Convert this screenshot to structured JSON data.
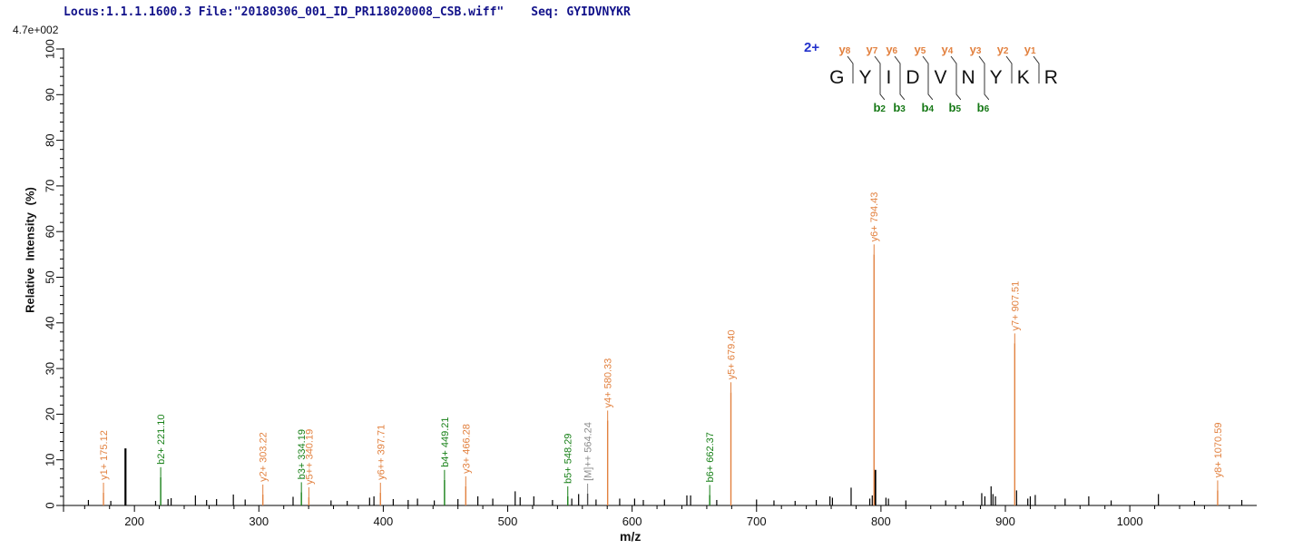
{
  "header": {
    "locus_file": "Locus:1.1.1.1600.3 File:\"20180306_001_ID_PR118020008_CSB.wiff\"",
    "seq_label": "Seq: GYIDVNYKR",
    "intensity_scale": "4.7e+002"
  },
  "peptide": {
    "charge": "2+",
    "residues": [
      "G",
      "Y",
      "I",
      "D",
      "V",
      "N",
      "Y",
      "K",
      "R"
    ],
    "gaps": [
      {
        "y": "y8",
        "b": null
      },
      {
        "y": "y7",
        "b": "b2"
      },
      {
        "y": "y6",
        "b": "b3"
      },
      {
        "y": "y5",
        "b": "b4"
      },
      {
        "y": "y4",
        "b": "b5"
      },
      {
        "y": "y3",
        "b": "b6"
      },
      {
        "y": "y2",
        "b": null
      },
      {
        "y": "y1",
        "b": null
      }
    ]
  },
  "chart_data": {
    "type": "bar",
    "subtype": "mass-spectrum",
    "title": "",
    "xlabel": "m/z",
    "ylabel": "Relative Intensity (%)",
    "xlim": [
      143,
      1102
    ],
    "ylim": [
      0,
      100
    ],
    "x_major_ticks": [
      200,
      300,
      400,
      500,
      600,
      700,
      800,
      900,
      1000
    ],
    "x_minor_step": 20,
    "y_major_step": 10,
    "y_minor_step": 2,
    "grid": false,
    "legend": "none",
    "colors": {
      "y_ion": "#e2813f",
      "b_ion": "#178017",
      "precursor_line": "#4a4a4a",
      "precursor_text": "#8c8c8c",
      "noise": "#000000",
      "axis": "#000000",
      "header_text": "#12128a",
      "charge_text": "#2433cc"
    },
    "labeled_peaks": [
      {
        "label": "y1+",
        "mz": 175.12,
        "intensity": 2.8,
        "series": "y"
      },
      {
        "label": "b2+",
        "mz": 221.1,
        "intensity": 6.2,
        "series": "b"
      },
      {
        "label": "y2+",
        "mz": 303.22,
        "intensity": 2.4,
        "series": "y"
      },
      {
        "label": "b3+",
        "mz": 334.19,
        "intensity": 2.9,
        "series": "b"
      },
      {
        "label": "y5++",
        "mz": 340.19,
        "intensity": 1.8,
        "series": "y"
      },
      {
        "label": "y6++",
        "mz": 397.71,
        "intensity": 2.8,
        "series": "y"
      },
      {
        "label": "b4+",
        "mz": 449.21,
        "intensity": 5.6,
        "series": "b"
      },
      {
        "label": "y3+",
        "mz": 466.28,
        "intensity": 4.2,
        "series": "y"
      },
      {
        "label": "b5+",
        "mz": 548.29,
        "intensity": 2.0,
        "series": "b"
      },
      {
        "label": "[M]++",
        "mz": 564.24,
        "intensity": 2.6,
        "series": "precursor"
      },
      {
        "label": "y4+",
        "mz": 580.33,
        "intensity": 18.6,
        "series": "y"
      },
      {
        "label": "b6+",
        "mz": 662.37,
        "intensity": 2.3,
        "series": "b"
      },
      {
        "label": "y5+",
        "mz": 679.4,
        "intensity": 24.8,
        "series": "y"
      },
      {
        "label": "y6+",
        "mz": 794.43,
        "intensity": 55.0,
        "series": "y"
      },
      {
        "label": "y7+",
        "mz": 907.51,
        "intensity": 35.5,
        "series": "y"
      },
      {
        "label": "y8+",
        "mz": 1070.59,
        "intensity": 3.3,
        "series": "y"
      }
    ],
    "unlabeled_peaks": [
      [
        163,
        1.2
      ],
      [
        181,
        1.0
      ],
      [
        192.8,
        12.5
      ],
      [
        217,
        1.0
      ],
      [
        227,
        1.4
      ],
      [
        229.5,
        1.6
      ],
      [
        249,
        2.2
      ],
      [
        258,
        1.2
      ],
      [
        266,
        1.4
      ],
      [
        279.5,
        2.4
      ],
      [
        289,
        1.3
      ],
      [
        327.5,
        1.9
      ],
      [
        358,
        1.1
      ],
      [
        371,
        1.0
      ],
      [
        389,
        1.7
      ],
      [
        392.5,
        2.0
      ],
      [
        408,
        1.4
      ],
      [
        420,
        1.2
      ],
      [
        427.5,
        1.5
      ],
      [
        441,
        1.1
      ],
      [
        460,
        1.4
      ],
      [
        476,
        2.0
      ],
      [
        488,
        1.5
      ],
      [
        506,
        3.1
      ],
      [
        510,
        1.8
      ],
      [
        521,
        2.0
      ],
      [
        536,
        1.2
      ],
      [
        551.5,
        1.5
      ],
      [
        557,
        2.5
      ],
      [
        571,
        1.3
      ],
      [
        590,
        1.5
      ],
      [
        602,
        1.5
      ],
      [
        609,
        1.2
      ],
      [
        626,
        1.3
      ],
      [
        644,
        2.2
      ],
      [
        647,
        2.2
      ],
      [
        668,
        1.2
      ],
      [
        700,
        1.3
      ],
      [
        714,
        1.1
      ],
      [
        731,
        1.0
      ],
      [
        748,
        1.2
      ],
      [
        759,
        2.0
      ],
      [
        761,
        1.7
      ],
      [
        776,
        3.9
      ],
      [
        791,
        1.5
      ],
      [
        793,
        2.2
      ],
      [
        795.4,
        7.8
      ],
      [
        804,
        1.7
      ],
      [
        806,
        1.5
      ],
      [
        820,
        1.1
      ],
      [
        852,
        1.1
      ],
      [
        866,
        1.0
      ],
      [
        881,
        2.7
      ],
      [
        883.5,
        2.0
      ],
      [
        888.5,
        4.2
      ],
      [
        890,
        2.5
      ],
      [
        892,
        2.0
      ],
      [
        909,
        3.3
      ],
      [
        918,
        1.5
      ],
      [
        920,
        2.0
      ],
      [
        924,
        2.3
      ],
      [
        948,
        1.5
      ],
      [
        967,
        2.0
      ],
      [
        985,
        1.1
      ],
      [
        1023,
        2.5
      ],
      [
        1052,
        1.0
      ],
      [
        1090,
        1.2
      ]
    ]
  }
}
